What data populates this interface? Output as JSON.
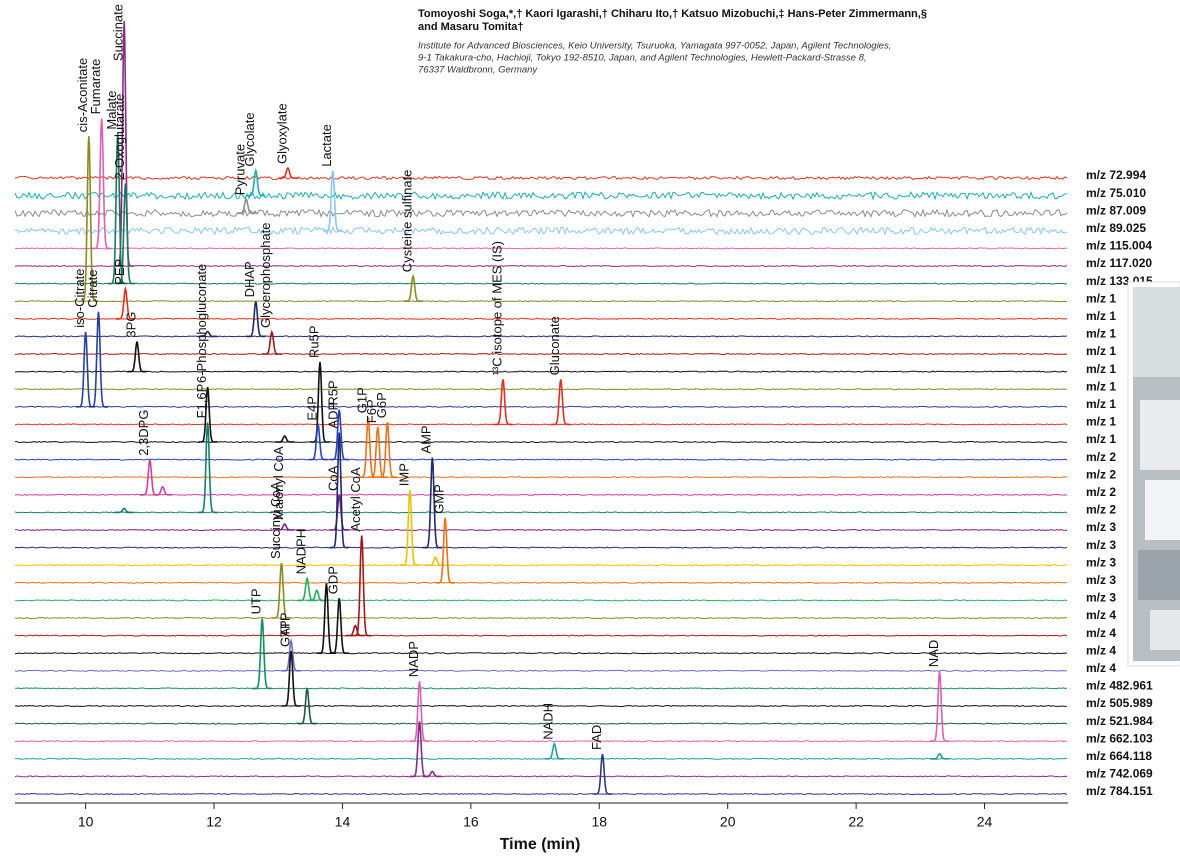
{
  "header": {
    "authors": [
      "Tomoyoshi Soga,*,† Kaori Igarashi,† Chiharu Ito,† Katsuo Mizobuchi,‡ Hans-Peter Zimmermann,§",
      "and Masaru Tomita†"
    ],
    "affiliation": [
      "Institute for Advanced Biosciences, Keio University, Tsuruoka, Yamagata 997-0052, Japan, Agilent Technologies,",
      "9-1 Takakura-cho, Hachioji, Tokyo 192-8510, Japan, and Agilent Technologies, Hewlett-Packard-Strasse 8,",
      "76337 Waldbronn, Germany"
    ]
  },
  "chart_data": {
    "type": "line",
    "x_label": "Time (min)",
    "xlim": [
      8.9,
      25.3
    ],
    "xticks": [
      10,
      12,
      14,
      16,
      18,
      20,
      22,
      24
    ],
    "traces": [
      {
        "label": "m/z  72.994",
        "color": "#e0301f",
        "peaks": [
          {
            "time": 13.15,
            "height": 10,
            "label": "Glyoxylate"
          }
        ]
      },
      {
        "label": "m/z  75.010",
        "color": "#1ab0b8",
        "peaks": [
          {
            "time": 12.65,
            "height": 25,
            "label": "Glycolate"
          }
        ]
      },
      {
        "label": "m/z  87.009",
        "color": "#8c8c8c",
        "peaks": [
          {
            "time": 12.5,
            "height": 14,
            "label": "Pyruvate"
          }
        ]
      },
      {
        "label": "m/z  89.025",
        "color": "#88c8ee",
        "peaks": [
          {
            "time": 13.85,
            "height": 60,
            "label": "Lactate"
          }
        ]
      },
      {
        "label": "m/z 115.004",
        "color": "#e060b0",
        "peaks": [
          {
            "time": 10.25,
            "height": 130,
            "label": "Fumarate"
          }
        ]
      },
      {
        "label": "m/z 117.020",
        "color": "#8a2a8a",
        "peaks": [
          {
            "time": 10.6,
            "height": 245,
            "label": "Succinate"
          }
        ]
      },
      {
        "label": "m/z 133.015",
        "color": "#1a7a5a",
        "peaks": [
          {
            "time": 10.5,
            "height": 150,
            "label": "Malate"
          },
          {
            "time": 10.62,
            "height": 100,
            "label": "2-Oxoglutarate"
          }
        ]
      },
      {
        "label": "m/z 1",
        "color": "#8a8a20",
        "peaks": [
          {
            "time": 10.05,
            "height": 165,
            "label": "cis-Aconitate"
          },
          {
            "time": 15.1,
            "height": 25,
            "label": "Cysteine sulfinate"
          }
        ]
      },
      {
        "label": "m/z 1",
        "color": "#e0301f",
        "peaks": [
          {
            "time": 10.62,
            "height": 30,
            "label": "PEP"
          }
        ]
      },
      {
        "label": "m/z 1",
        "color": "#1f2a70",
        "peaks": [
          {
            "time": 12.65,
            "height": 35,
            "label": "DHAP"
          },
          {
            "time": 11.9,
            "height": 5
          }
        ]
      },
      {
        "label": "m/z 1",
        "color": "#a01818",
        "peaks": [
          {
            "time": 12.9,
            "height": 22,
            "label": "Glycerophosphate"
          }
        ]
      },
      {
        "label": "m/z 1",
        "color": "#111111",
        "peaks": [
          {
            "time": 10.8,
            "height": 30,
            "label": "3PG"
          }
        ]
      },
      {
        "label": "m/z 1",
        "color": "#8a8a20",
        "peaks": []
      },
      {
        "label": "m/z 1",
        "color": "#2840a0",
        "peaks": [
          {
            "time": 10.0,
            "height": 75,
            "label": "iso-Citrate"
          },
          {
            "time": 10.2,
            "height": 95,
            "label": "Citrate"
          }
        ]
      },
      {
        "label": "m/z 1",
        "color": "#e0301f",
        "peaks": [
          {
            "time": 16.5,
            "height": 45,
            "label": "¹³C isotope of MES (IS)"
          },
          {
            "time": 17.4,
            "height": 45,
            "label": "Gluconate"
          }
        ]
      },
      {
        "label": "m/z 1",
        "color": "#111111",
        "peaks": [
          {
            "time": 11.9,
            "height": 55,
            "label": "6-Phosphogluconate"
          },
          {
            "time": 13.1,
            "height": 6
          },
          {
            "time": 13.65,
            "height": 80,
            "label": "Ru5P"
          }
        ]
      },
      {
        "label": "m/z 2",
        "color": "#2840c0",
        "peaks": [
          {
            "time": 13.62,
            "height": 35,
            "label": "E4P"
          },
          {
            "time": 13.95,
            "height": 50,
            "label": "R5P"
          }
        ]
      },
      {
        "label": "m/z 2",
        "color": "#f07018",
        "peaks": [
          {
            "time": 14.4,
            "height": 60,
            "label": "G1P"
          },
          {
            "time": 14.55,
            "height": 50,
            "label": "F6P"
          },
          {
            "time": 14.7,
            "height": 55,
            "label": "G6P"
          }
        ]
      },
      {
        "label": "m/z 2",
        "color": "#d040a0",
        "peaks": [
          {
            "time": 11.0,
            "height": 35,
            "label": "2,3DPG"
          },
          {
            "time": 11.2,
            "height": 8
          }
        ]
      },
      {
        "label": "m/z 2",
        "color": "#108070",
        "peaks": [
          {
            "time": 11.9,
            "height": 90,
            "label": "F1,6P"
          },
          {
            "time": 10.6,
            "height": 4
          }
        ]
      },
      {
        "label": "m/z 3",
        "color": "#7a207a",
        "peaks": [
          {
            "time": 13.1,
            "height": 6,
            "label": "Malonyl CoA"
          },
          {
            "time": 13.95,
            "height": 35,
            "label": "CoA"
          }
        ]
      },
      {
        "label": "m/z 3",
        "color": "#1f2a70",
        "peaks": [
          {
            "time": 13.95,
            "height": 115,
            "label": "ADP"
          },
          {
            "time": 15.4,
            "height": 90,
            "label": "AMP"
          }
        ]
      },
      {
        "label": "m/z 3",
        "color": "#f0c000",
        "peaks": [
          {
            "time": 15.05,
            "height": 75,
            "label": "IMP"
          },
          {
            "time": 15.45,
            "height": 8
          }
        ]
      },
      {
        "label": "m/z 3",
        "color": "#f07018",
        "peaks": [
          {
            "time": 15.6,
            "height": 65,
            "label": "GMP"
          }
        ]
      },
      {
        "label": "m/z 3",
        "color": "#20b060",
        "peaks": [
          {
            "time": 13.45,
            "height": 22,
            "label": "NADPH"
          },
          {
            "time": 13.6,
            "height": 10
          }
        ]
      },
      {
        "label": "m/z 4",
        "color": "#8a8a20",
        "peaks": [
          {
            "time": 13.05,
            "height": 55,
            "label": "Succinyl CoA"
          }
        ]
      },
      {
        "label": "m/z 4",
        "color": "#a01818",
        "peaks": [
          {
            "time": 14.3,
            "height": 100,
            "label": "Acetyl CoA"
          },
          {
            "time": 14.2,
            "height": 10
          }
        ]
      },
      {
        "label": "m/z 4",
        "color": "#111111",
        "peaks": [
          {
            "time": 13.75,
            "height": 70
          },
          {
            "time": 13.95,
            "height": 55,
            "label": "GDP"
          }
        ]
      },
      {
        "label": "m/z 4",
        "color": "#6a70c0",
        "peaks": [
          {
            "time": 13.2,
            "height": 30,
            "label": "ATP"
          }
        ]
      },
      {
        "label": "m/z 482.961",
        "color": "#109060",
        "peaks": [
          {
            "time": 12.75,
            "height": 70,
            "label": "UTP"
          }
        ]
      },
      {
        "label": "m/z 505.989",
        "color": "#111111",
        "peaks": [
          {
            "time": 13.2,
            "height": 55,
            "label": "GTP"
          }
        ]
      },
      {
        "label": "m/z 521.984",
        "color": "#1a5a3a",
        "peaks": [
          {
            "time": 13.45,
            "height": 35
          }
        ]
      },
      {
        "label": "m/z 662.103",
        "color": "#e060b0",
        "peaks": [
          {
            "time": 15.2,
            "height": 60,
            "label": "NADP"
          },
          {
            "time": 23.3,
            "height": 70,
            "label": "NAD"
          }
        ]
      },
      {
        "label": "m/z 664.118",
        "color": "#20a0a0",
        "peaks": [
          {
            "time": 17.3,
            "height": 15,
            "label": "NADH"
          },
          {
            "time": 23.3,
            "height": 5
          }
        ]
      },
      {
        "label": "m/z 742.069",
        "color": "#8a2a8a",
        "peaks": [
          {
            "time": 15.2,
            "height": 55
          },
          {
            "time": 15.4,
            "height": 5
          }
        ]
      },
      {
        "label": "m/z 784.151",
        "color": "#2a3a80",
        "peaks": [
          {
            "time": 18.05,
            "height": 40,
            "label": "FAD"
          }
        ]
      }
    ]
  }
}
